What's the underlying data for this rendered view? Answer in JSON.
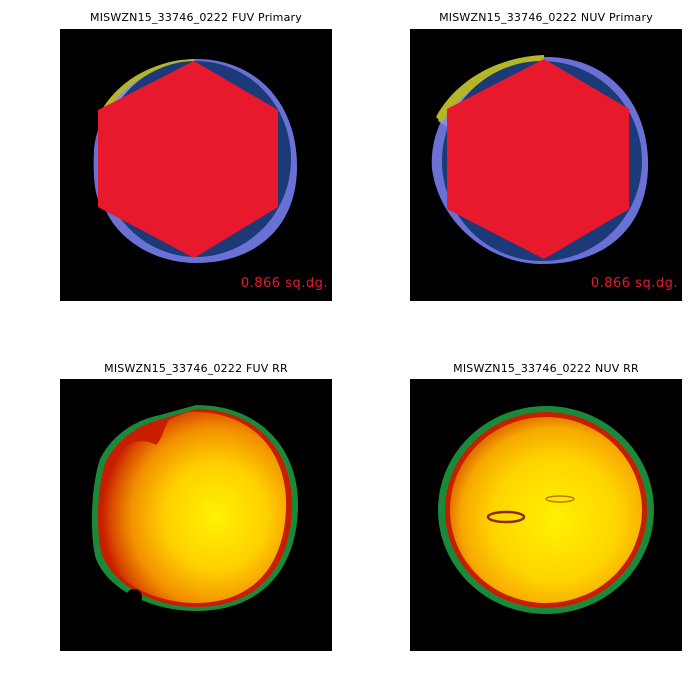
{
  "panels": {
    "fuv_primary": {
      "title": "MISWZN15_33746_0222 FUV Primary",
      "area": "0.866 sq.dg."
    },
    "nuv_primary": {
      "title": "MISWZN15_33746_0222 NUV Primary",
      "area": "0.866 sq.dg."
    },
    "fuv_rr": {
      "title": "MISWZN15_33746_0222 FUV RR"
    },
    "nuv_rr": {
      "title": "MISWZN15_33746_0222 NUV RR"
    }
  },
  "colors": {
    "background": "#000000",
    "outer_ring": "#6a70d4",
    "inner_disk": "#1c3a78",
    "coverage_hexagon": "#e8192c",
    "overlap_edge": "#b5b52a",
    "light_patch": "#8a8de0",
    "area_text": "#e8192c",
    "rr_center": "#fff200",
    "rr_mid": "#f0a000",
    "rr_edge": "#c81e00",
    "rr_rim": "#1a8a3a"
  }
}
